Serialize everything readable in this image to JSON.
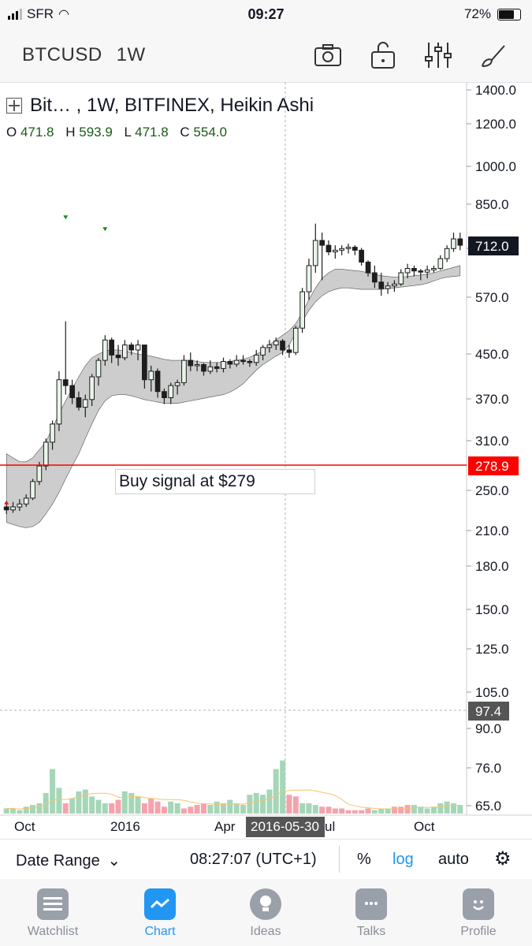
{
  "status_bar": {
    "carrier": "SFR",
    "time": "09:27",
    "battery": "72%"
  },
  "header": {
    "symbol": "BTCUSD",
    "resolution": "1W",
    "icons": [
      "camera-icon",
      "share-icon",
      "settings-sliders-icon",
      "drawing-brush-icon"
    ]
  },
  "legend": {
    "title": "Bit… , 1W, BITFINEX, Heikin Ashi",
    "o_label": "O",
    "o": "471.8",
    "h_label": "H",
    "h": "593.9",
    "l_label": "L",
    "l": "471.8",
    "c_label": "C",
    "c": "554.0"
  },
  "annotation": "Buy signal at $279",
  "price_axis": {
    "labels": [
      "1400.0",
      "1200.0",
      "1000.0",
      "850.0",
      "690.0",
      "570.0",
      "450.0",
      "370.0",
      "310.0",
      "250.0",
      "210.0",
      "180.0",
      "150.0",
      "125.0",
      "105.0",
      "90.0",
      "76.0",
      "65.0"
    ],
    "current_price": "712.0",
    "line_price": "278.9",
    "crosshair_value": "97.4"
  },
  "time_axis": {
    "labels": [
      "Oct",
      "2016",
      "Apr",
      "ul",
      "Oct"
    ],
    "crosshair_date": "2016-05-30"
  },
  "colors": {
    "up": "#e8f5e9",
    "down": "#1e1e1e",
    "band": "#c8c8c8",
    "vol_up": "#a5d6b8",
    "vol_down": "#f4a3ad",
    "line": "#ff0000",
    "accent": "#2196f3"
  },
  "chart_data": {
    "type": "candlestick",
    "candles": [
      [
        235,
        238,
        228,
        232
      ],
      [
        232,
        240,
        229,
        235
      ],
      [
        235,
        243,
        231,
        238
      ],
      [
        238,
        248,
        235,
        244
      ],
      [
        244,
        265,
        242,
        262
      ],
      [
        262,
        285,
        258,
        280
      ],
      [
        280,
        315,
        275,
        310
      ],
      [
        310,
        340,
        300,
        335
      ],
      [
        335,
        420,
        325,
        405
      ],
      [
        405,
        520,
        380,
        395
      ],
      [
        395,
        405,
        365,
        375
      ],
      [
        375,
        385,
        355,
        360
      ],
      [
        360,
        380,
        345,
        372
      ],
      [
        372,
        415,
        362,
        410
      ],
      [
        410,
        445,
        395,
        440
      ],
      [
        440,
        490,
        430,
        480
      ],
      [
        480,
        485,
        435,
        450
      ],
      [
        450,
        470,
        430,
        445
      ],
      [
        445,
        480,
        440,
        470
      ],
      [
        470,
        475,
        450,
        460
      ],
      [
        460,
        480,
        440,
        470
      ],
      [
        470,
        470,
        390,
        405
      ],
      [
        405,
        430,
        385,
        420
      ],
      [
        420,
        425,
        375,
        385
      ],
      [
        385,
        390,
        365,
        375
      ],
      [
        375,
        400,
        365,
        395
      ],
      [
        395,
        405,
        380,
        400
      ],
      [
        400,
        450,
        395,
        440
      ],
      [
        440,
        455,
        420,
        430
      ],
      [
        430,
        440,
        420,
        432
      ],
      [
        432,
        435,
        412,
        420
      ],
      [
        420,
        440,
        415,
        428
      ],
      [
        428,
        436,
        418,
        425
      ],
      [
        425,
        445,
        418,
        438
      ],
      [
        438,
        442,
        425,
        433
      ],
      [
        433,
        450,
        428,
        440
      ],
      [
        440,
        450,
        432,
        438
      ],
      [
        438,
        442,
        428,
        436
      ],
      [
        436,
        460,
        430,
        450
      ],
      [
        450,
        470,
        440,
        465
      ],
      [
        465,
        480,
        455,
        470
      ],
      [
        470,
        485,
        460,
        478
      ],
      [
        478,
        482,
        450,
        460
      ],
      [
        460,
        470,
        445,
        455
      ],
      [
        455,
        510,
        450,
        505
      ],
      [
        505,
        600,
        495,
        590
      ],
      [
        590,
        680,
        570,
        660
      ],
      [
        660,
        790,
        640,
        735
      ],
      [
        735,
        760,
        620,
        720
      ],
      [
        720,
        735,
        690,
        700
      ],
      [
        700,
        720,
        680,
        705
      ],
      [
        705,
        720,
        690,
        710
      ],
      [
        710,
        725,
        695,
        714
      ],
      [
        714,
        720,
        690,
        705
      ],
      [
        705,
        712,
        660,
        670
      ],
      [
        670,
        675,
        630,
        640
      ],
      [
        640,
        660,
        600,
        615
      ],
      [
        615,
        640,
        580,
        598
      ],
      [
        598,
        615,
        585,
        605
      ],
      [
        605,
        620,
        590,
        610
      ],
      [
        610,
        650,
        605,
        640
      ],
      [
        640,
        665,
        625,
        652
      ],
      [
        652,
        660,
        630,
        645
      ],
      [
        645,
        650,
        620,
        642
      ],
      [
        642,
        660,
        625,
        648
      ],
      [
        648,
        660,
        640,
        652
      ],
      [
        652,
        690,
        648,
        680
      ],
      [
        680,
        720,
        670,
        710
      ],
      [
        710,
        760,
        700,
        740
      ],
      [
        740,
        760,
        705,
        720
      ]
    ],
    "volume": [
      3,
      3,
      2,
      4,
      5,
      6,
      12,
      26,
      15,
      6,
      9,
      13,
      14,
      10,
      8,
      6,
      6,
      8,
      13,
      12,
      10,
      6,
      9,
      7,
      4,
      7,
      6,
      3,
      4,
      5,
      6,
      5,
      7,
      6,
      8,
      6,
      5,
      11,
      12,
      11,
      14,
      26,
      31,
      11,
      10,
      6,
      6,
      5,
      4,
      4,
      3,
      3,
      2,
      2,
      2,
      3,
      2,
      3,
      3,
      4,
      4,
      5,
      5,
      4,
      3,
      4,
      6,
      7,
      6,
      5
    ],
    "volume_up": [
      true,
      true,
      true,
      true,
      true,
      true,
      true,
      true,
      true,
      false,
      true,
      true,
      true,
      true,
      true,
      true,
      false,
      false,
      true,
      true,
      true,
      false,
      false,
      false,
      false,
      true,
      true,
      false,
      false,
      false,
      false,
      true,
      true,
      true,
      true,
      true,
      true,
      true,
      true,
      true,
      true,
      true,
      true,
      false,
      false,
      true,
      true,
      true,
      false,
      false,
      false,
      false,
      false,
      false,
      false,
      false,
      true,
      true,
      true,
      false,
      false,
      false,
      true,
      true,
      true,
      true,
      true,
      true,
      true,
      true
    ],
    "volume_scale_max": 105,
    "ylim": [
      200,
      1400
    ],
    "markers_down": [
      {
        "i": 9,
        "price": 810
      },
      {
        "i": 15,
        "price": 770
      }
    ],
    "markers_up": [
      {
        "i": 0,
        "price": 240
      }
    ],
    "band_top": [
      295,
      290,
      285,
      285,
      290,
      300,
      310,
      330,
      350,
      370,
      390,
      410,
      430,
      445,
      452,
      458,
      460,
      460,
      458,
      455,
      452,
      450,
      448,
      445,
      442,
      440,
      440,
      440,
      440,
      438,
      436,
      436,
      436,
      436,
      438,
      440,
      442,
      446,
      452,
      458,
      470,
      480,
      490,
      500,
      515,
      540,
      570,
      600,
      625,
      640,
      650,
      650,
      648,
      646,
      644,
      640,
      636,
      632,
      630,
      628,
      628,
      630,
      632,
      634,
      636,
      640,
      645,
      650,
      655,
      660
    ],
    "band_bottom": [
      220,
      218,
      216,
      215,
      216,
      220,
      228,
      238,
      250,
      265,
      280,
      295,
      315,
      335,
      355,
      370,
      378,
      380,
      380,
      378,
      375,
      372,
      370,
      368,
      366,
      366,
      366,
      368,
      370,
      372,
      374,
      376,
      378,
      380,
      384,
      390,
      398,
      410,
      422,
      432,
      440,
      448,
      455,
      470,
      495,
      520,
      545,
      565,
      580,
      590,
      596,
      600,
      600,
      598,
      596,
      596,
      596,
      596,
      598,
      600,
      602,
      604,
      606,
      608,
      612,
      618,
      624,
      628,
      630,
      632
    ]
  }
}
